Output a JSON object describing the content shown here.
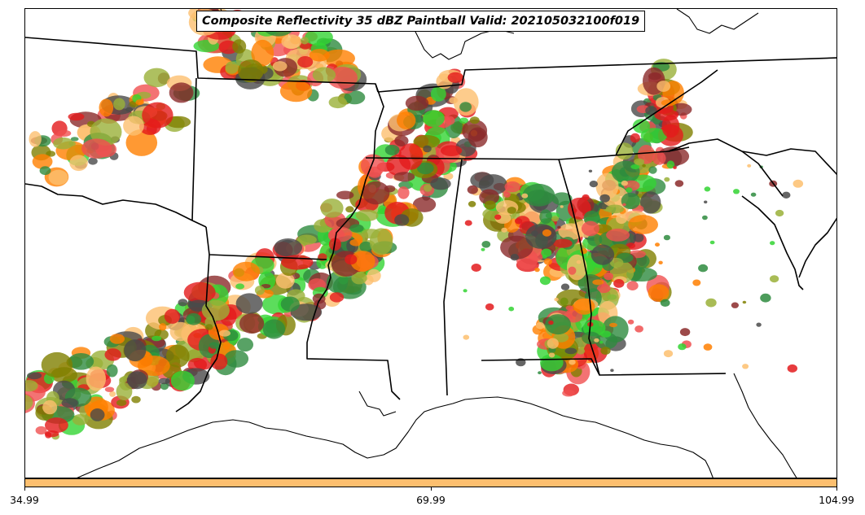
{
  "title": "Composite Reflectivity 35 dBZ Paintball Valid: 202105032100f019",
  "colorbar": {
    "color": "#fdbf6f",
    "ticks": [
      "34.99",
      "69.99",
      "104.99"
    ]
  },
  "paintball_colors": [
    "#e31a1c",
    "#ff7f00",
    "#fdbf6f",
    "#33d433",
    "#808000",
    "#8b2a2a",
    "#4a4a4a",
    "#2e8b3e",
    "#9ab038",
    "#f05050"
  ],
  "basemap": {
    "line_color": "#000000",
    "features": [
      "coastline",
      "state-borders"
    ]
  }
}
